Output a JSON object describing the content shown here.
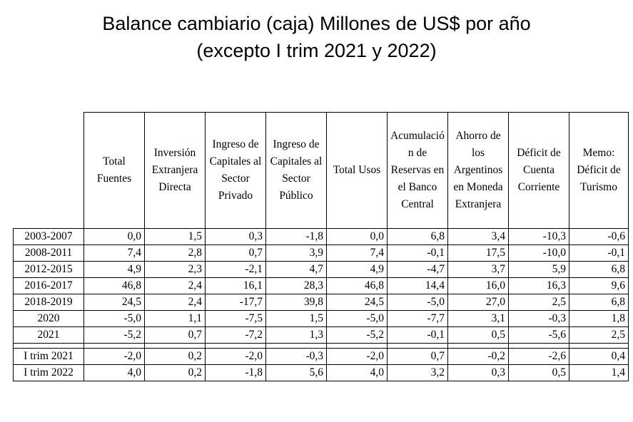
{
  "title": [
    "Balance cambiario (caja) Millones de US$ por año",
    "(excepto I trim 2021 y 2022)"
  ],
  "table": {
    "columns": [
      "Total Fuentes",
      "Inversión Extranjera Directa",
      "Ingreso de Capitales al Sector Privado",
      "Ingreso de Capitales al Sector Público",
      "Total Usos",
      "Acumulación de Reservas en el Banco Central",
      "Ahorro de los Argentinos en Moneda Extranjera",
      "Déficit de Cuenta Corriente",
      "Memo: Déficit de Turismo"
    ],
    "rows": [
      [
        "2003-2007",
        "0,0",
        "1,5",
        "0,3",
        "-1,8",
        "0,0",
        "6,8",
        "3,4",
        "-10,3",
        "-0,6"
      ],
      [
        "2008-2011",
        "7,4",
        "2,8",
        "0,7",
        "3,9",
        "7,4",
        "-0,1",
        "17,5",
        "-10,0",
        "-0,1"
      ],
      [
        "2012-2015",
        "4,9",
        "2,3",
        "-2,1",
        "4,7",
        "4,9",
        "-4,7",
        "3,7",
        "5,9",
        "6,8"
      ],
      [
        "2016-2017",
        "46,8",
        "2,4",
        "16,1",
        "28,3",
        "46,8",
        "14,4",
        "16,0",
        "16,3",
        "9,6"
      ],
      [
        "2018-2019",
        "24,5",
        "2,4",
        "-17,7",
        "39,8",
        "24,5",
        "-5,0",
        "27,0",
        "2,5",
        "6,8"
      ],
      [
        "2020",
        "-5,0",
        "1,1",
        "-7,5",
        "1,5",
        "-5,0",
        "-7,7",
        "3,1",
        "-0,3",
        "1,8"
      ],
      [
        "2021",
        "-5,2",
        "0,7",
        "-7,2",
        "1,3",
        "-5,2",
        "-0,1",
        "0,5",
        "-5,6",
        "2,5"
      ],
      [
        "I trim 2021",
        "-2,0",
        "0,2",
        "-2,0",
        "-0,3",
        "-2,0",
        "0,7",
        "-0,2",
        "-2,6",
        "0,4"
      ],
      [
        "I trim 2022",
        "4,0",
        "0,2",
        "-1,8",
        "5,6",
        "4,0",
        "3,2",
        "0,3",
        "0,5",
        "1,4"
      ]
    ]
  }
}
